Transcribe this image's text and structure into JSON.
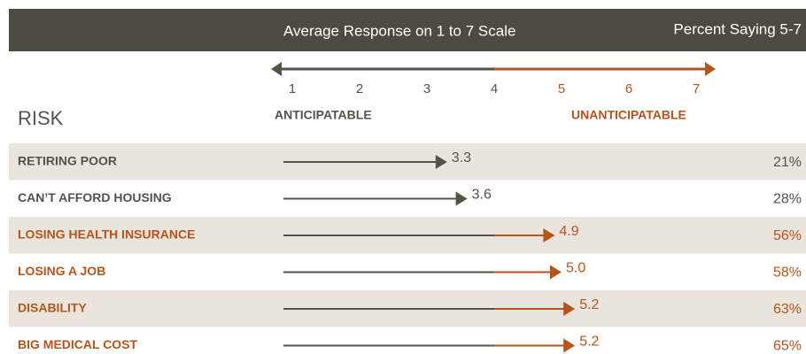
{
  "chart_data": {
    "type": "arrow",
    "title": "Average Response on 1 to 7 Scale",
    "subtitle": "Percent Saying 5-7",
    "y_label": "RISK",
    "low_label": "ANTICIPATABLE",
    "high_label": "UNANTICIPATABLE",
    "categories": [
      "RETIRING POOR",
      "CAN’T AFFORD HOUSING",
      "LOSING HEALTH INSURANCE",
      "LOSING A JOB",
      "DISABILITY",
      "BIG MEDICAL COST"
    ],
    "values": [
      3.3,
      3.6,
      4.9,
      5.0,
      5.2,
      5.2
    ],
    "value_labels": [
      "3.3",
      "3.6",
      "4.9",
      "5.0",
      "5.2",
      "5.2"
    ],
    "percent": {
      "values": [
        21,
        28,
        56,
        58,
        63,
        65
      ],
      "value_labels": [
        "21%",
        "28%",
        "56%",
        "58%",
        "63%",
        "65%"
      ]
    },
    "xlim": [
      1,
      7
    ],
    "xticks": [
      1,
      2,
      3,
      4,
      5,
      6,
      7
    ],
    "color": "#55524a",
    "highlight_color": "#b5541c",
    "header_color": "#4d4a42",
    "row_colors": [
      "#e9e5dc",
      "#ffffff"
    ]
  }
}
